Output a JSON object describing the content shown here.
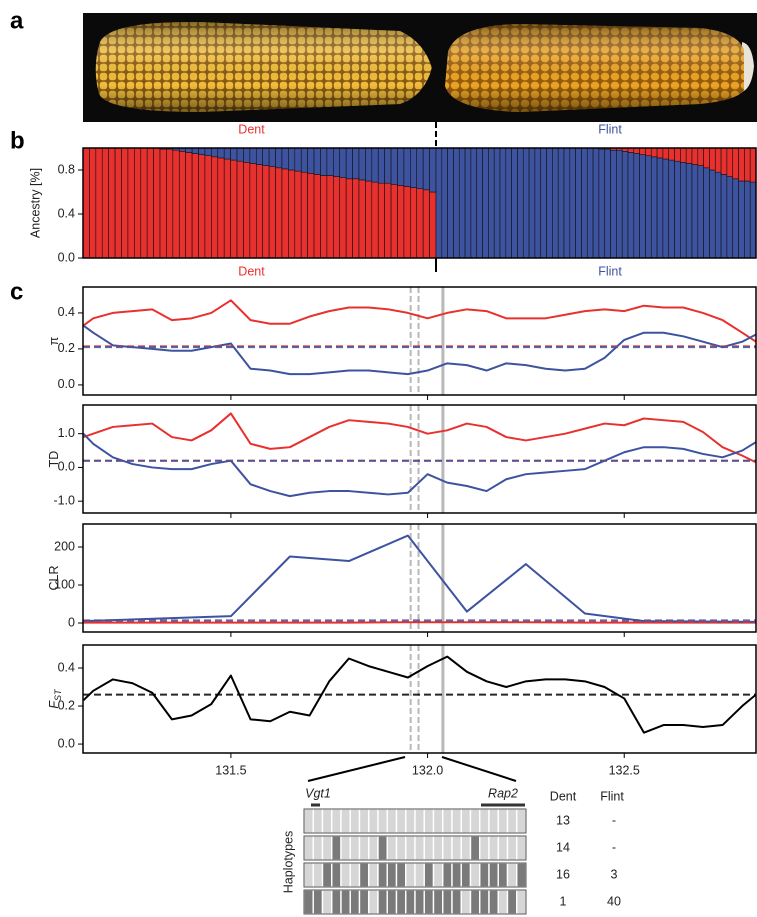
{
  "panel_labels": [
    "a",
    "b",
    "c"
  ],
  "chart_data": [
    {
      "type": "stacked_bar",
      "title": "Dent",
      "ylabel": "Ancestry [%]",
      "ylim": [
        0,
        1
      ],
      "yticks": [
        {
          "value": 0,
          "label": "0.0"
        },
        {
          "value": 0.4,
          "label": "0.4"
        },
        {
          "value": 0.8,
          "label": "0.8"
        }
      ],
      "series": [
        {
          "color": "#e8312f",
          "values": [
            1,
            1,
            1,
            1,
            1,
            1,
            1,
            1,
            1,
            1,
            1,
            1,
            0.99,
            0.99,
            0.98,
            0.97,
            0.96,
            0.95,
            0.94,
            0.93,
            0.92,
            0.91,
            0.9,
            0.89,
            0.88,
            0.87,
            0.86,
            0.85,
            0.84,
            0.83,
            0.82,
            0.81,
            0.8,
            0.79,
            0.78,
            0.77,
            0.76,
            0.75,
            0.75,
            0.74,
            0.73,
            0.72,
            0.72,
            0.71,
            0.7,
            0.69,
            0.68,
            0.68,
            0.67,
            0.66,
            0.65,
            0.64,
            0.63,
            0.62,
            0.6
          ]
        },
        {
          "color": "#3e53a0",
          "values": [
            0,
            0,
            0,
            0,
            0,
            0,
            0,
            0,
            0,
            0,
            0,
            0,
            0.01,
            0.01,
            0.02,
            0.03,
            0.04,
            0.05,
            0.06,
            0.07,
            0.08,
            0.09,
            0.1,
            0.11,
            0.12,
            0.13,
            0.14,
            0.15,
            0.16,
            0.17,
            0.18,
            0.19,
            0.2,
            0.21,
            0.22,
            0.23,
            0.24,
            0.25,
            0.25,
            0.26,
            0.27,
            0.28,
            0.28,
            0.29,
            0.3,
            0.31,
            0.32,
            0.32,
            0.33,
            0.34,
            0.35,
            0.36,
            0.37,
            0.38,
            0.4
          ]
        }
      ]
    },
    {
      "type": "stacked_bar",
      "title": "Flint",
      "ylim": [
        0,
        1
      ],
      "series": [
        {
          "color": "#3e53a0",
          "values": [
            1,
            1,
            1,
            1,
            1,
            1,
            1,
            1,
            1,
            1,
            1,
            1,
            1,
            1,
            1,
            1,
            1,
            1,
            1,
            1,
            1,
            1,
            1,
            1,
            1,
            1,
            1,
            1,
            0.99,
            0.99,
            0.98,
            0.98,
            0.97,
            0.96,
            0.95,
            0.94,
            0.93,
            0.92,
            0.91,
            0.9,
            0.89,
            0.88,
            0.87,
            0.86,
            0.85,
            0.84,
            0.82,
            0.8,
            0.78,
            0.76,
            0.74,
            0.72,
            0.7,
            0.7,
            0.69
          ]
        },
        {
          "color": "#e8312f",
          "values": [
            0,
            0,
            0,
            0,
            0,
            0,
            0,
            0,
            0,
            0,
            0,
            0,
            0,
            0,
            0,
            0,
            0,
            0,
            0,
            0,
            0,
            0,
            0,
            0,
            0,
            0,
            0,
            0,
            0.01,
            0.01,
            0.02,
            0.02,
            0.03,
            0.04,
            0.05,
            0.06,
            0.07,
            0.08,
            0.09,
            0.1,
            0.11,
            0.12,
            0.13,
            0.14,
            0.15,
            0.16,
            0.18,
            0.2,
            0.22,
            0.24,
            0.26,
            0.28,
            0.3,
            0.3,
            0.31
          ]
        }
      ]
    },
    {
      "type": "line",
      "ylabel": "π",
      "xlim": [
        131.124,
        132.835
      ],
      "ylim": [
        -0.056,
        0.544
      ],
      "yticks": [
        {
          "value": 0,
          "label": "0.0"
        },
        {
          "value": 0.2,
          "label": "0.2"
        },
        {
          "value": 0.4,
          "label": "0.4"
        }
      ],
      "x": [
        131.125,
        131.15,
        131.2,
        131.25,
        131.3,
        131.35,
        131.4,
        131.45,
        131.5,
        131.55,
        131.6,
        131.65,
        131.7,
        131.75,
        131.8,
        131.85,
        131.9,
        131.95,
        132,
        132.05,
        132.1,
        132.15,
        132.2,
        132.25,
        132.3,
        132.35,
        132.4,
        132.45,
        132.5,
        132.55,
        132.6,
        132.65,
        132.7,
        132.75,
        132.8,
        132.835
      ],
      "series": [
        {
          "color": "#e8312f",
          "values": [
            0.33,
            0.37,
            0.4,
            0.41,
            0.42,
            0.36,
            0.37,
            0.4,
            0.47,
            0.36,
            0.34,
            0.34,
            0.38,
            0.41,
            0.43,
            0.43,
            0.42,
            0.4,
            0.37,
            0.4,
            0.42,
            0.41,
            0.37,
            0.37,
            0.37,
            0.39,
            0.41,
            0.42,
            0.41,
            0.44,
            0.43,
            0.43,
            0.4,
            0.36,
            0.29,
            0.24
          ]
        },
        {
          "color": "#3e53a0",
          "values": [
            0.33,
            0.29,
            0.22,
            0.21,
            0.2,
            0.19,
            0.19,
            0.21,
            0.23,
            0.09,
            0.08,
            0.06,
            0.06,
            0.07,
            0.08,
            0.08,
            0.07,
            0.06,
            0.08,
            0.12,
            0.11,
            0.08,
            0.12,
            0.11,
            0.09,
            0.08,
            0.09,
            0.15,
            0.25,
            0.29,
            0.29,
            0.27,
            0.24,
            0.21,
            0.24,
            0.28
          ]
        }
      ],
      "hlines": [
        {
          "y": 0.215,
          "color": "#e8312f"
        },
        {
          "y": 0.21,
          "color": "#3e53a0"
        }
      ],
      "vlines": [
        {
          "x": 131.957,
          "style": "dashed"
        },
        {
          "x": 131.977,
          "style": "dashed"
        },
        {
          "x": 132.039,
          "style": "solid"
        }
      ]
    },
    {
      "type": "line",
      "ylabel": "TD",
      "xlim": [
        131.124,
        132.835
      ],
      "ylim": [
        -1.35,
        1.85
      ],
      "yticks": [
        {
          "value": -1,
          "label": "-1.0"
        },
        {
          "value": 0,
          "label": "0.0"
        },
        {
          "value": 1,
          "label": "1.0"
        }
      ],
      "x": [
        131.125,
        131.15,
        131.2,
        131.25,
        131.3,
        131.35,
        131.4,
        131.45,
        131.5,
        131.55,
        131.6,
        131.65,
        131.7,
        131.75,
        131.8,
        131.85,
        131.9,
        131.95,
        132,
        132.05,
        132.1,
        132.15,
        132.2,
        132.25,
        132.3,
        132.35,
        132.4,
        132.45,
        132.5,
        132.55,
        132.6,
        132.65,
        132.7,
        132.75,
        132.8,
        132.835
      ],
      "series": [
        {
          "color": "#e8312f",
          "values": [
            0.9,
            1,
            1.2,
            1.25,
            1.3,
            0.9,
            0.8,
            1.1,
            1.6,
            0.7,
            0.55,
            0.6,
            0.9,
            1.2,
            1.4,
            1.35,
            1.3,
            1.2,
            1,
            1.1,
            1.3,
            1.2,
            0.9,
            0.8,
            0.9,
            1,
            1.15,
            1.3,
            1.25,
            1.45,
            1.4,
            1.35,
            1.05,
            0.6,
            0.35,
            0.15
          ]
        },
        {
          "color": "#3e53a0",
          "values": [
            1,
            0.7,
            0.3,
            0.1,
            0,
            -0.05,
            -0.05,
            0.1,
            0.2,
            -0.5,
            -0.7,
            -0.85,
            -0.75,
            -0.7,
            -0.7,
            -0.75,
            -0.8,
            -0.75,
            -0.2,
            -0.45,
            -0.55,
            -0.7,
            -0.35,
            -0.2,
            -0.15,
            -0.1,
            -0.05,
            0.2,
            0.45,
            0.6,
            0.6,
            0.55,
            0.4,
            0.3,
            0.5,
            0.75
          ]
        }
      ],
      "hlines": [
        {
          "y": 0.2,
          "color": "#e8312f"
        },
        {
          "y": 0.2,
          "color": "#3e53a0"
        }
      ],
      "vlines": [
        {
          "x": 131.957,
          "style": "dashed"
        },
        {
          "x": 131.977,
          "style": "dashed"
        },
        {
          "x": 132.039,
          "style": "solid"
        }
      ]
    },
    {
      "type": "line",
      "ylabel": "CLR",
      "xlim": [
        131.124,
        132.835
      ],
      "ylim": [
        -23.7,
        260.5
      ],
      "yticks": [
        0,
        100,
        200
      ],
      "x": [
        131.124,
        131.5,
        131.65,
        131.8,
        131.95,
        132.1,
        132.25,
        132.4,
        132.55,
        132.835
      ],
      "series": [
        {
          "color": "#e8312f",
          "values": [
            1,
            1,
            1,
            1,
            2,
            2,
            2,
            1,
            1,
            1
          ]
        },
        {
          "color": "#3e53a0",
          "values": [
            5,
            18,
            175,
            163,
            230,
            30,
            155,
            25,
            5,
            3
          ]
        }
      ],
      "hlines": [
        {
          "y": 3,
          "color": "#e8312f"
        },
        {
          "y": 7,
          "color": "#3e53a0"
        }
      ],
      "vlines": [
        {
          "x": 131.957,
          "style": "dashed"
        },
        {
          "x": 131.977,
          "style": "dashed"
        },
        {
          "x": 132.039,
          "style": "solid"
        }
      ]
    },
    {
      "type": "line",
      "ylabel": "F",
      "ylabel_subscript": "ST",
      "xlim": [
        131.124,
        132.835
      ],
      "ylim": [
        -0.047,
        0.521
      ],
      "yticks": [
        {
          "value": 0,
          "label": "0.0"
        },
        {
          "value": 0.2,
          "label": "0.2"
        },
        {
          "value": 0.4,
          "label": "0.4"
        }
      ],
      "xticks": [
        131.5,
        {
          "value": 132,
          "label": "132.0"
        },
        132.5
      ],
      "x": [
        131.125,
        131.15,
        131.2,
        131.25,
        131.3,
        131.35,
        131.4,
        131.45,
        131.5,
        131.55,
        131.6,
        131.65,
        131.7,
        131.75,
        131.8,
        131.85,
        131.9,
        131.95,
        132,
        132.05,
        132.1,
        132.15,
        132.2,
        132.25,
        132.3,
        132.35,
        132.4,
        132.45,
        132.5,
        132.55,
        132.6,
        132.65,
        132.7,
        132.75,
        132.8,
        132.835
      ],
      "series": [
        {
          "color": "#000000",
          "values": [
            0.23,
            0.28,
            0.34,
            0.32,
            0.27,
            0.13,
            0.15,
            0.21,
            0.36,
            0.13,
            0.12,
            0.17,
            0.15,
            0.33,
            0.45,
            0.41,
            0.38,
            0.35,
            0.41,
            0.46,
            0.38,
            0.33,
            0.3,
            0.33,
            0.34,
            0.34,
            0.33,
            0.3,
            0.24,
            0.06,
            0.1,
            0.1,
            0.09,
            0.1,
            0.2,
            0.26
          ]
        }
      ],
      "hlines": [
        {
          "y": 0.26,
          "color": "#000000"
        }
      ],
      "vlines": [
        {
          "x": 131.957,
          "style": "dashed"
        },
        {
          "x": 131.977,
          "style": "dashed"
        },
        {
          "x": 132.039,
          "style": "solid"
        }
      ]
    }
  ],
  "haplotypes": {
    "label": "Haplotypes",
    "genes": [
      "Vgt1",
      "Rap2"
    ],
    "columns": [
      "Dent",
      "Flint"
    ],
    "counts": [
      [
        13,
        "-"
      ],
      [
        14,
        "-"
      ],
      [
        16,
        3
      ],
      [
        1,
        40
      ]
    ],
    "alleles": [
      [
        0,
        0,
        0,
        0,
        0,
        0,
        0,
        0,
        0,
        0,
        0,
        0,
        0,
        0,
        0,
        0,
        0,
        0,
        0,
        0,
        0,
        0,
        0,
        0
      ],
      [
        0,
        0,
        0,
        1,
        0,
        0,
        0,
        0,
        1,
        0,
        0,
        0,
        0,
        0,
        0,
        0,
        0,
        0,
        1,
        0,
        0,
        0,
        0,
        0
      ],
      [
        0,
        0,
        1,
        1,
        0,
        0,
        1,
        0,
        1,
        1,
        1,
        0,
        0,
        1,
        0,
        1,
        1,
        1,
        0,
        1,
        1,
        1,
        0,
        1
      ],
      [
        1,
        1,
        0,
        1,
        1,
        1,
        1,
        0,
        1,
        1,
        1,
        1,
        1,
        1,
        1,
        1,
        1,
        0,
        1,
        1,
        1,
        0,
        1,
        0
      ]
    ]
  }
}
